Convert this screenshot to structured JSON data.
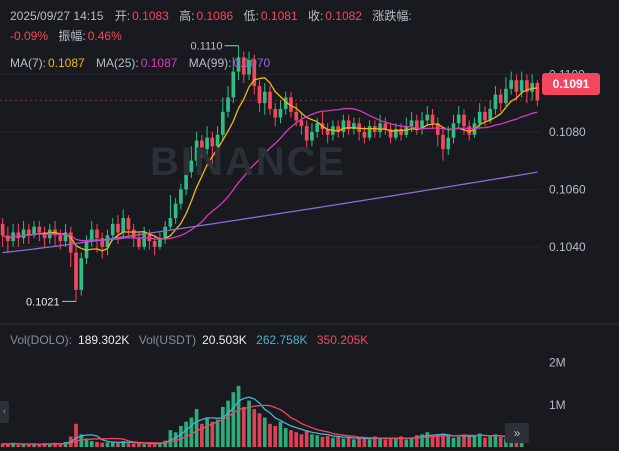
{
  "ohlc": {
    "datetime": "2025/09/27 14:15",
    "open_label": "开:",
    "open": "0.1083",
    "high_label": "高:",
    "high": "0.1086",
    "low_label": "低:",
    "low": "0.1081",
    "close_label": "收:",
    "close": "0.1082",
    "change_label": "涨跌幅:",
    "change": "-0.09%",
    "amp_label": "振幅:",
    "amp": "0.46%"
  },
  "ma": {
    "ma7_label": "MA(7):",
    "ma7": "0.1087",
    "ma25_label": "MA(25):",
    "ma25": "0.1087",
    "ma99_label": "MA(99):",
    "ma99": "0.1070"
  },
  "watermark": "BINANCE",
  "price_axis": {
    "ticks": [
      "0.1100",
      "0.1080",
      "0.1060",
      "0.1040"
    ],
    "current_price": "0.1091",
    "high_marker": "0.1110",
    "low_marker": "0.1021"
  },
  "volume": {
    "dolo_label": "Vol(DOLO):",
    "dolo_value": "189.302K",
    "usdt_label": "Vol(USDT)",
    "usdt_value": "20.503K",
    "ma5_value": "262.758K",
    "ma10_value": "350.205K",
    "axis_ticks": [
      "2M",
      "1M"
    ]
  },
  "colors": {
    "up": "#2ebd85",
    "down": "#f6465d",
    "ma7": "#f0b90b",
    "ma25": "#d63bb8",
    "ma99": "#8f6bd6",
    "vol_ma5": "#47b3d1",
    "vol_ma10": "#f6465d"
  },
  "chart_data": {
    "type": "candlestick",
    "ylim": [
      0.1018,
      0.1112
    ],
    "candles": [
      [
        0.1048,
        0.1044,
        0.105,
        0.104
      ],
      [
        0.1044,
        0.1042,
        0.1047,
        0.1038
      ],
      [
        0.1042,
        0.1045,
        0.1048,
        0.104
      ],
      [
        0.1045,
        0.1043,
        0.1048,
        0.104
      ],
      [
        0.1043,
        0.1046,
        0.1049,
        0.1041
      ],
      [
        0.1046,
        0.1044,
        0.1048,
        0.1041
      ],
      [
        0.1044,
        0.1047,
        0.1049,
        0.1043
      ],
      [
        0.1047,
        0.1045,
        0.1049,
        0.1042
      ],
      [
        0.1045,
        0.1043,
        0.1047,
        0.104
      ],
      [
        0.1043,
        0.1046,
        0.1048,
        0.1041
      ],
      [
        0.1046,
        0.1044,
        0.1049,
        0.104
      ],
      [
        0.1044,
        0.1042,
        0.1046,
        0.1039
      ],
      [
        0.1042,
        0.1045,
        0.1048,
        0.104
      ],
      [
        0.1045,
        0.1038,
        0.1047,
        0.1033
      ],
      [
        0.1038,
        0.1025,
        0.104,
        0.1021
      ],
      [
        0.1025,
        0.1036,
        0.1038,
        0.1023
      ],
      [
        0.1036,
        0.1042,
        0.1044,
        0.1034
      ],
      [
        0.1042,
        0.1046,
        0.1049,
        0.104
      ],
      [
        0.1046,
        0.1043,
        0.1048,
        0.1038
      ],
      [
        0.1043,
        0.104,
        0.1045,
        0.1036
      ],
      [
        0.104,
        0.1044,
        0.1046,
        0.1037
      ],
      [
        0.1044,
        0.1048,
        0.105,
        0.1042
      ],
      [
        0.1048,
        0.1045,
        0.1051,
        0.1041
      ],
      [
        0.1045,
        0.105,
        0.1053,
        0.1043
      ],
      [
        0.105,
        0.1046,
        0.1051,
        0.1044
      ],
      [
        0.1046,
        0.1043,
        0.1048,
        0.104
      ],
      [
        0.1043,
        0.104,
        0.1045,
        0.1039
      ],
      [
        0.104,
        0.1045,
        0.1047,
        0.1039
      ],
      [
        0.1045,
        0.1042,
        0.1046,
        0.1039
      ],
      [
        0.1042,
        0.104,
        0.1044,
        0.1037
      ],
      [
        0.104,
        0.1043,
        0.1045,
        0.1039
      ],
      [
        0.1043,
        0.1047,
        0.1049,
        0.1041
      ],
      [
        0.1047,
        0.105,
        0.1058,
        0.1046
      ],
      [
        0.105,
        0.1055,
        0.1057,
        0.1048
      ],
      [
        0.1055,
        0.106,
        0.1062,
        0.1053
      ],
      [
        0.106,
        0.1066,
        0.1069,
        0.1058
      ],
      [
        0.1066,
        0.107,
        0.1075,
        0.1064
      ],
      [
        0.107,
        0.1077,
        0.108,
        0.1068
      ],
      [
        0.1077,
        0.1074,
        0.1079,
        0.1071
      ],
      [
        0.1074,
        0.1078,
        0.1082,
        0.1072
      ],
      [
        0.1078,
        0.1075,
        0.108,
        0.1068
      ],
      [
        0.1075,
        0.1079,
        0.1082,
        0.1074
      ],
      [
        0.1079,
        0.1087,
        0.1092,
        0.1077
      ],
      [
        0.1087,
        0.1092,
        0.1096,
        0.1085
      ],
      [
        0.1092,
        0.1101,
        0.1106,
        0.109
      ],
      [
        0.1101,
        0.1106,
        0.111,
        0.1098
      ],
      [
        0.1106,
        0.11,
        0.1108,
        0.1097
      ],
      [
        0.11,
        0.1105,
        0.1108,
        0.1098
      ],
      [
        0.1105,
        0.1096,
        0.1107,
        0.1093
      ],
      [
        0.1096,
        0.109,
        0.1098,
        0.1087
      ],
      [
        0.109,
        0.1094,
        0.1097,
        0.1086
      ],
      [
        0.1094,
        0.1088,
        0.1096,
        0.1086
      ],
      [
        0.1088,
        0.1085,
        0.109,
        0.1082
      ],
      [
        0.1085,
        0.1088,
        0.1091,
        0.1083
      ],
      [
        0.1088,
        0.1092,
        0.1094,
        0.1086
      ],
      [
        0.1092,
        0.1087,
        0.1094,
        0.1085
      ],
      [
        0.1087,
        0.1084,
        0.109,
        0.1082
      ],
      [
        0.1084,
        0.1082,
        0.1087,
        0.1079
      ],
      [
        0.1082,
        0.1077,
        0.1084,
        0.1074
      ],
      [
        0.1077,
        0.108,
        0.1083,
        0.1075
      ],
      [
        0.108,
        0.1083,
        0.1085,
        0.1078
      ],
      [
        0.1083,
        0.1081,
        0.1087,
        0.1079
      ],
      [
        0.1081,
        0.1079,
        0.1083,
        0.1076
      ],
      [
        0.1079,
        0.1082,
        0.1084,
        0.1077
      ],
      [
        0.1082,
        0.108,
        0.1084,
        0.1078
      ],
      [
        0.108,
        0.1084,
        0.1086,
        0.1078
      ],
      [
        0.1084,
        0.1081,
        0.1086,
        0.1079
      ],
      [
        0.1081,
        0.1083,
        0.1085,
        0.1079
      ],
      [
        0.1083,
        0.108,
        0.1085,
        0.1077
      ],
      [
        0.108,
        0.1078,
        0.1082,
        0.1076
      ],
      [
        0.1078,
        0.1082,
        0.1084,
        0.1077
      ],
      [
        0.1082,
        0.108,
        0.1084,
        0.1078
      ],
      [
        0.108,
        0.1083,
        0.1086,
        0.1078
      ],
      [
        0.1083,
        0.1081,
        0.1085,
        0.1079
      ],
      [
        0.1081,
        0.1078,
        0.1083,
        0.1076
      ],
      [
        0.1078,
        0.1081,
        0.1083,
        0.1077
      ],
      [
        0.1081,
        0.1079,
        0.1083,
        0.1077
      ],
      [
        0.1079,
        0.1082,
        0.1085,
        0.1078
      ],
      [
        0.1082,
        0.1084,
        0.1087,
        0.108
      ],
      [
        0.1084,
        0.1081,
        0.1086,
        0.1079
      ],
      [
        0.1081,
        0.1084,
        0.1087,
        0.1079
      ],
      [
        0.1084,
        0.1086,
        0.1089,
        0.1082
      ],
      [
        0.1086,
        0.1083,
        0.1088,
        0.1081
      ],
      [
        0.1083,
        0.1079,
        0.1085,
        0.1075
      ],
      [
        0.1079,
        0.1074,
        0.1081,
        0.107
      ],
      [
        0.1074,
        0.1078,
        0.1082,
        0.1072
      ],
      [
        0.1078,
        0.1083,
        0.1086,
        0.1076
      ],
      [
        0.1083,
        0.1086,
        0.1089,
        0.1081
      ],
      [
        0.1086,
        0.1082,
        0.1088,
        0.1079
      ],
      [
        0.1082,
        0.1079,
        0.1084,
        0.1077
      ],
      [
        0.1079,
        0.1083,
        0.1085,
        0.1078
      ],
      [
        0.1083,
        0.1087,
        0.109,
        0.1081
      ],
      [
        0.1087,
        0.1084,
        0.1089,
        0.1082
      ],
      [
        0.1084,
        0.1088,
        0.1091,
        0.1083
      ],
      [
        0.1088,
        0.1093,
        0.1096,
        0.1086
      ],
      [
        0.1093,
        0.109,
        0.1095,
        0.1087
      ],
      [
        0.109,
        0.1095,
        0.1099,
        0.1089
      ],
      [
        0.1095,
        0.1098,
        0.1101,
        0.1093
      ],
      [
        0.1098,
        0.1094,
        0.11,
        0.1091
      ],
      [
        0.1094,
        0.1098,
        0.1101,
        0.1092
      ],
      [
        0.1098,
        0.1094,
        0.11,
        0.109
      ],
      [
        0.1094,
        0.1097,
        0.11,
        0.1091
      ],
      [
        0.1097,
        0.1091,
        0.1098,
        0.1089
      ]
    ]
  }
}
